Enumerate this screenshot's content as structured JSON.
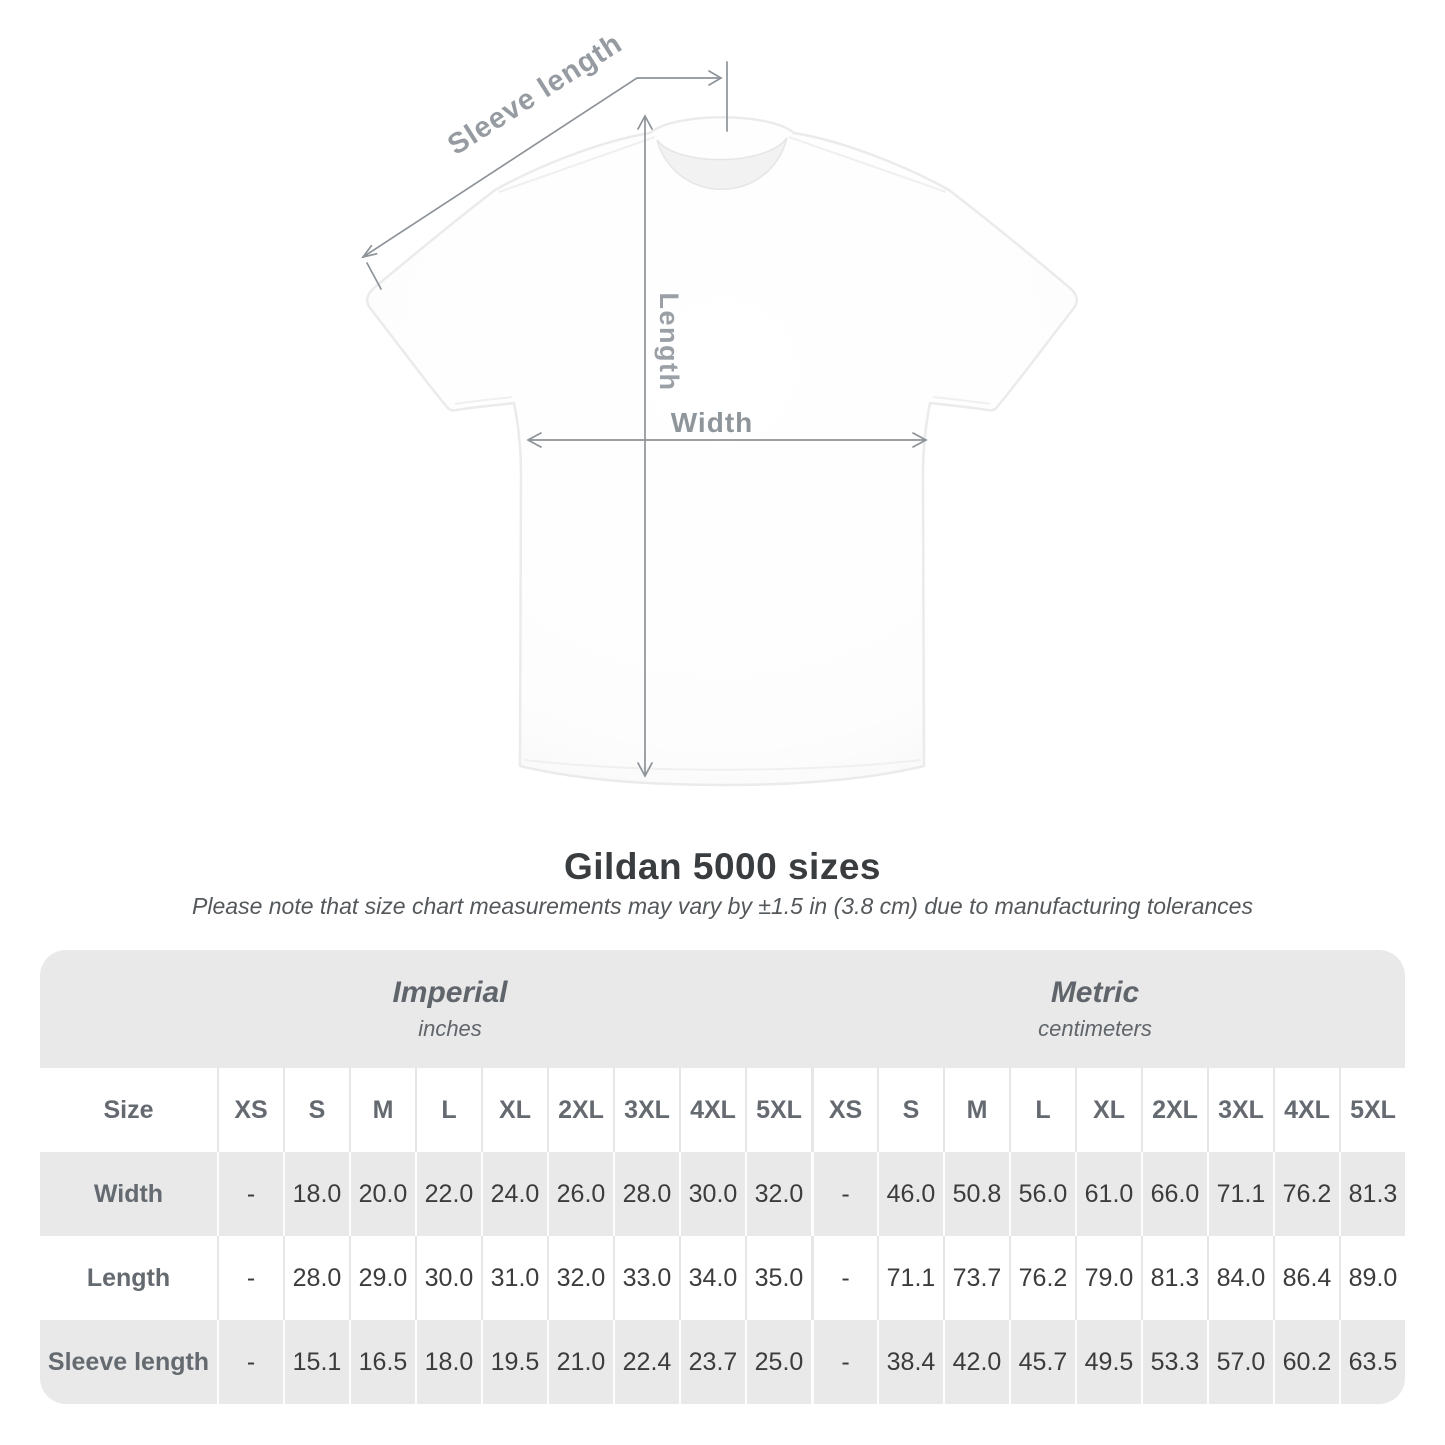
{
  "diagram": {
    "sleeve_length_label": "Sleeve length",
    "length_label": "Length",
    "width_label": "Width"
  },
  "title": "Gildan 5000 sizes",
  "subtitle": "Please note that size chart measurements may vary by ±1.5 in (3.8 cm) due to manufacturing tolerances",
  "table": {
    "size_header": "Size",
    "groups": [
      {
        "label": "Imperial",
        "unit": "inches"
      },
      {
        "label": "Metric",
        "unit": "centimeters"
      }
    ],
    "sizes": [
      "XS",
      "S",
      "M",
      "L",
      "XL",
      "2XL",
      "3XL",
      "4XL",
      "5XL"
    ],
    "rows": [
      {
        "label": "Width",
        "imperial": [
          "-",
          "18.0",
          "20.0",
          "22.0",
          "24.0",
          "26.0",
          "28.0",
          "30.0",
          "32.0"
        ],
        "metric": [
          "-",
          "46.0",
          "50.8",
          "56.0",
          "61.0",
          "66.0",
          "71.1",
          "76.2",
          "81.3"
        ]
      },
      {
        "label": "Length",
        "imperial": [
          "-",
          "28.0",
          "29.0",
          "30.0",
          "31.0",
          "32.0",
          "33.0",
          "34.0",
          "35.0"
        ],
        "metric": [
          "-",
          "71.1",
          "73.7",
          "76.2",
          "79.0",
          "81.3",
          "84.0",
          "86.4",
          "89.0"
        ]
      },
      {
        "label": "Sleeve length",
        "imperial": [
          "-",
          "15.1",
          "16.5",
          "18.0",
          "19.5",
          "21.0",
          "22.4",
          "23.7",
          "25.0"
        ],
        "metric": [
          "-",
          "38.4",
          "42.0",
          "45.7",
          "49.5",
          "53.3",
          "57.0",
          "60.2",
          "63.5"
        ]
      }
    ]
  },
  "colors": {
    "annotation_gray": "#8d9398",
    "label_gray": "#959ba0",
    "table_band_gray": "#e9e9e9",
    "header_text_gray": "#646a70",
    "value_text_dark": "#3c3c3c",
    "title_dark": "#3a3d3f"
  }
}
